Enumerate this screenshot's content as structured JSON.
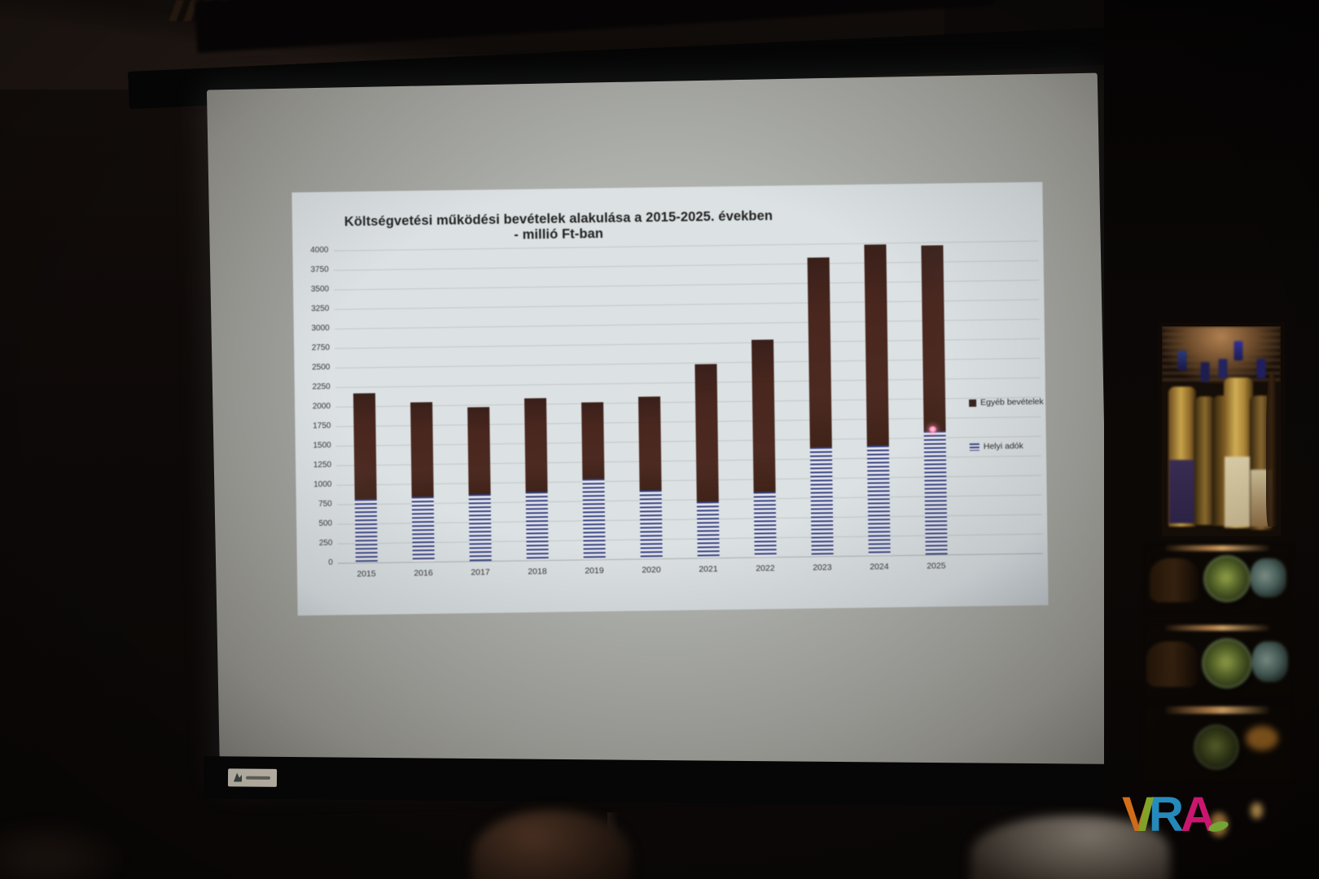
{
  "chart_data": {
    "type": "bar",
    "stacked": true,
    "title": "Költségvetési működési bevételek alakulása a 2015-2025. években  - millió Ft-ban",
    "categories": [
      "2015",
      "2016",
      "2017",
      "2018",
      "2019",
      "2020",
      "2021",
      "2022",
      "2023",
      "2024",
      "2025"
    ],
    "series": [
      {
        "name": "Helyi adók",
        "pattern": "horizontal-stripes",
        "colors": [
          "#303c7c",
          "#e8e9ee"
        ],
        "values": [
          815,
          830,
          850,
          870,
          1030,
          870,
          720,
          830,
          1400,
          1410,
          1580
        ]
      },
      {
        "name": "Egyéb bevételek",
        "pattern": "solid",
        "colors": [
          "#46261e"
        ],
        "values": [
          1355,
          1210,
          1115,
          1200,
          980,
          1200,
          1755,
          1950,
          2420,
          2570,
          2380
        ]
      }
    ],
    "totals": [
      2170,
      2040,
      1965,
      2070,
      2010,
      2070,
      2475,
      2780,
      3820,
      3980,
      3960
    ],
    "xlabel": "",
    "ylabel": "",
    "unit": "millió Ft",
    "ylim": [
      0,
      4000
    ],
    "ytick_step": 250,
    "grid": true,
    "legend_position": "right-inside",
    "legend": [
      {
        "label": "Egyéb bevételek",
        "swatch": "solid"
      },
      {
        "label": "Helyi adók",
        "swatch": "stripes"
      }
    ]
  },
  "watermark": {
    "text": "VIRA",
    "letters": [
      {
        "char": "V",
        "color": "#ee7b1d"
      },
      {
        "char": "I",
        "color": "#94bb2f"
      },
      {
        "char": "R",
        "color": "#2b9fd8"
      },
      {
        "char": "A",
        "color": "#ec1a82"
      }
    ],
    "accent_dot_color": "#8cc63f"
  }
}
